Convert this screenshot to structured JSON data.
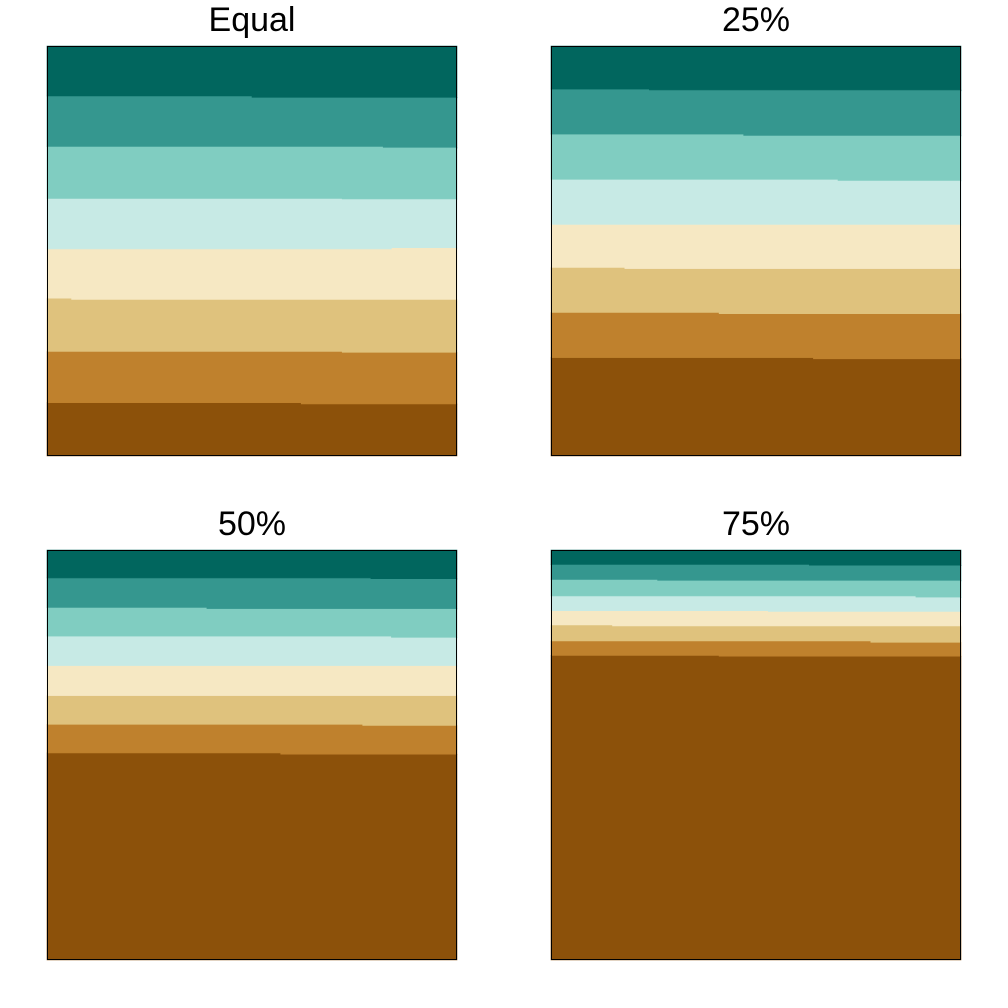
{
  "colors": [
    "#8c510a",
    "#bf812d",
    "#dfc27d",
    "#f6e8c3",
    "#c7eae5",
    "#80cdc1",
    "#35978f",
    "#01665e"
  ],
  "chart_data": [
    {
      "type": "area",
      "title": "Equal",
      "ylim": [
        0,
        1
      ],
      "xlim": [
        0,
        1
      ],
      "boundaries": [
        {
          "x": [
            0,
            0.62,
            1
          ],
          "y": [
            0.13,
            0.127,
            0.125
          ]
        },
        {
          "x": [
            0,
            0.72,
            1
          ],
          "y": [
            0.255,
            0.253,
            0.25
          ]
        },
        {
          "x": [
            0,
            0.06,
            1
          ],
          "y": [
            0.385,
            0.382,
            0.378
          ]
        },
        {
          "x": [
            0,
            0.84,
            1
          ],
          "y": [
            0.505,
            0.508,
            0.505
          ]
        },
        {
          "x": [
            0,
            0.72,
            1
          ],
          "y": [
            0.628,
            0.627,
            0.625
          ]
        },
        {
          "x": [
            0,
            0.82,
            1
          ],
          "y": [
            0.755,
            0.753,
            0.75
          ]
        },
        {
          "x": [
            0,
            0.5,
            1
          ],
          "y": [
            0.878,
            0.875,
            0.873
          ]
        }
      ]
    },
    {
      "type": "area",
      "title": "25%",
      "ylim": [
        0,
        1
      ],
      "xlim": [
        0,
        1
      ],
      "boundaries": [
        {
          "x": [
            0,
            0.64,
            1
          ],
          "y": [
            0.24,
            0.237,
            0.235
          ]
        },
        {
          "x": [
            0,
            0.41,
            1
          ],
          "y": [
            0.35,
            0.347,
            0.345
          ]
        },
        {
          "x": [
            0,
            0.18,
            1
          ],
          "y": [
            0.46,
            0.457,
            0.455
          ]
        },
        {
          "x": [
            0,
            0.94,
            1
          ],
          "y": [
            0.565,
            0.565,
            0.562
          ]
        },
        {
          "x": [
            0,
            0.7,
            1
          ],
          "y": [
            0.675,
            0.672,
            0.67
          ]
        },
        {
          "x": [
            0,
            0.47,
            1
          ],
          "y": [
            0.785,
            0.782,
            0.78
          ]
        },
        {
          "x": [
            0,
            0.24,
            1
          ],
          "y": [
            0.895,
            0.893,
            0.89
          ]
        }
      ]
    },
    {
      "type": "area",
      "title": "50%",
      "ylim": [
        0,
        1
      ],
      "xlim": [
        0,
        1
      ],
      "boundaries": [
        {
          "x": [
            0,
            0.57,
            1
          ],
          "y": [
            0.505,
            0.502,
            0.5
          ]
        },
        {
          "x": [
            0,
            0.77,
            1
          ],
          "y": [
            0.575,
            0.572,
            0.57
          ]
        },
        {
          "x": [
            0,
            0.96,
            1
          ],
          "y": [
            0.645,
            0.645,
            0.64
          ]
        },
        {
          "x": [
            0,
            0.96,
            1
          ],
          "y": [
            0.718,
            0.718,
            0.715
          ]
        },
        {
          "x": [
            0,
            0.84,
            1
          ],
          "y": [
            0.79,
            0.787,
            0.785
          ]
        },
        {
          "x": [
            0,
            0.39,
            1
          ],
          "y": [
            0.86,
            0.857,
            0.855
          ]
        },
        {
          "x": [
            0,
            0.79,
            1
          ],
          "y": [
            0.932,
            0.93,
            0.928
          ]
        }
      ]
    },
    {
      "type": "area",
      "title": "75%",
      "ylim": [
        0,
        1
      ],
      "xlim": [
        0,
        1
      ],
      "boundaries": [
        {
          "x": [
            0,
            0.41,
            1
          ],
          "y": [
            0.743,
            0.741,
            0.739
          ]
        },
        {
          "x": [
            0,
            0.78,
            1
          ],
          "y": [
            0.778,
            0.775,
            0.773
          ]
        },
        {
          "x": [
            0,
            0.15,
            1
          ],
          "y": [
            0.817,
            0.815,
            0.813
          ]
        },
        {
          "x": [
            0,
            0.53,
            1
          ],
          "y": [
            0.852,
            0.85,
            0.848
          ]
        },
        {
          "x": [
            0,
            0.89,
            1
          ],
          "y": [
            0.888,
            0.885,
            0.883
          ]
        },
        {
          "x": [
            0,
            0.26,
            1
          ],
          "y": [
            0.928,
            0.926,
            0.924
          ]
        },
        {
          "x": [
            0,
            0.63,
            1
          ],
          "y": [
            0.965,
            0.963,
            0.961
          ]
        }
      ]
    }
  ]
}
